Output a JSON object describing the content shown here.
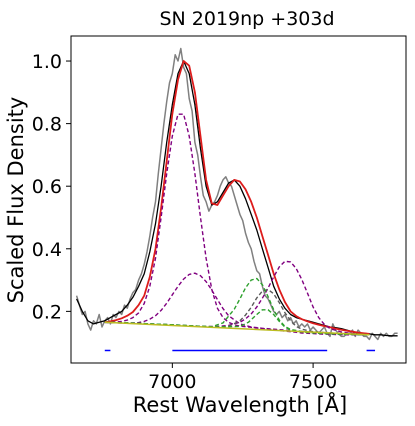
{
  "chart_data": {
    "type": "line",
    "title": "SN 2019np  +303d",
    "xlabel": "Rest Wavelength [Å]",
    "ylabel": "Scaled Flux Density",
    "xlim": [
      6640,
      7830
    ],
    "ylim": [
      0.035,
      1.08
    ],
    "x_ticks": [
      7000,
      7500
    ],
    "x_tick_labels": [
      "7000",
      "7500"
    ],
    "y_ticks": [
      0.2,
      0.4,
      0.6,
      0.8,
      1.0
    ],
    "y_tick_labels": [
      "0.2",
      "0.4",
      "0.6",
      "0.8",
      "1.0"
    ],
    "grid": false,
    "series": [
      {
        "role": "observed-spectrum",
        "color": "#808080",
        "x": [
          6660,
          6670,
          6680,
          6690,
          6700,
          6710,
          6720,
          6730,
          6740,
          6750,
          6760,
          6770,
          6780,
          6790,
          6800,
          6810,
          6820,
          6830,
          6840,
          6850,
          6860,
          6870,
          6880,
          6890,
          6900,
          6910,
          6920,
          6930,
          6940,
          6950,
          6960,
          6970,
          6980,
          6990,
          7000,
          7010,
          7020,
          7030,
          7040,
          7050,
          7060,
          7070,
          7080,
          7090,
          7100,
          7110,
          7120,
          7130,
          7140,
          7150,
          7160,
          7170,
          7180,
          7190,
          7200,
          7210,
          7220,
          7230,
          7240,
          7250,
          7260,
          7270,
          7280,
          7290,
          7300,
          7310,
          7320,
          7330,
          7340,
          7350,
          7360,
          7370,
          7380,
          7390,
          7400,
          7410,
          7420,
          7430,
          7440,
          7450,
          7460,
          7470,
          7480,
          7490,
          7500,
          7510,
          7520,
          7530,
          7540,
          7550,
          7560,
          7570,
          7580,
          7590,
          7600,
          7610,
          7620,
          7630,
          7640,
          7650,
          7660,
          7670,
          7680,
          7690,
          7700,
          7710,
          7720,
          7730,
          7740,
          7750,
          7760,
          7770,
          7780,
          7790,
          7800
        ],
        "y": [
          0.25,
          0.22,
          0.19,
          0.2,
          0.16,
          0.14,
          0.17,
          0.16,
          0.19,
          0.15,
          0.17,
          0.18,
          0.16,
          0.19,
          0.18,
          0.2,
          0.19,
          0.22,
          0.21,
          0.24,
          0.26,
          0.27,
          0.3,
          0.32,
          0.35,
          0.39,
          0.44,
          0.5,
          0.55,
          0.64,
          0.72,
          0.8,
          0.87,
          0.93,
          0.96,
          1.02,
          1.0,
          1.04,
          0.98,
          0.96,
          0.88,
          0.84,
          0.74,
          0.7,
          0.63,
          0.57,
          0.55,
          0.52,
          0.54,
          0.55,
          0.57,
          0.6,
          0.62,
          0.63,
          0.61,
          0.6,
          0.57,
          0.54,
          0.51,
          0.49,
          0.45,
          0.42,
          0.4,
          0.36,
          0.33,
          0.32,
          0.28,
          0.25,
          0.24,
          0.22,
          0.2,
          0.19,
          0.2,
          0.18,
          0.19,
          0.17,
          0.18,
          0.16,
          0.17,
          0.15,
          0.16,
          0.15,
          0.16,
          0.14,
          0.15,
          0.14,
          0.13,
          0.14,
          0.15,
          0.13,
          0.12,
          0.16,
          0.14,
          0.13,
          0.12,
          0.12,
          0.13,
          0.13,
          0.14,
          0.12,
          0.14,
          0.13,
          0.12,
          0.12,
          0.11,
          0.13,
          0.12,
          0.11,
          0.13,
          0.12,
          0.13,
          0.12,
          0.12,
          0.13,
          0.13
        ]
      },
      {
        "role": "smoothed-spectrum",
        "color": "#000000",
        "x": [
          6660,
          6680,
          6700,
          6720,
          6740,
          6760,
          6780,
          6800,
          6820,
          6840,
          6860,
          6880,
          6900,
          6920,
          6940,
          6960,
          6980,
          7000,
          7020,
          7040,
          7060,
          7080,
          7100,
          7120,
          7140,
          7160,
          7180,
          7200,
          7220,
          7240,
          7260,
          7280,
          7300,
          7320,
          7340,
          7360,
          7380,
          7400,
          7420,
          7440,
          7460,
          7480,
          7500,
          7520,
          7540,
          7560,
          7580,
          7600,
          7620,
          7640,
          7660,
          7680,
          7700,
          7720,
          7740,
          7760,
          7780,
          7800
        ],
        "y": [
          0.24,
          0.2,
          0.17,
          0.16,
          0.165,
          0.17,
          0.18,
          0.19,
          0.2,
          0.22,
          0.245,
          0.28,
          0.32,
          0.39,
          0.48,
          0.6,
          0.74,
          0.86,
          0.96,
          1.0,
          0.96,
          0.86,
          0.72,
          0.6,
          0.54,
          0.55,
          0.58,
          0.61,
          0.62,
          0.6,
          0.56,
          0.51,
          0.46,
          0.4,
          0.34,
          0.28,
          0.24,
          0.21,
          0.19,
          0.18,
          0.175,
          0.17,
          0.165,
          0.16,
          0.155,
          0.15,
          0.148,
          0.145,
          0.14,
          0.135,
          0.13,
          0.13,
          0.128,
          0.125,
          0.125,
          0.123,
          0.122,
          0.122
        ]
      },
      {
        "role": "total-fit",
        "color": "#dd1c1c",
        "x": [
          6760,
          6780,
          6800,
          6820,
          6840,
          6860,
          6880,
          6900,
          6920,
          6940,
          6960,
          6980,
          7000,
          7020,
          7040,
          7060,
          7080,
          7100,
          7120,
          7140,
          7160,
          7180,
          7200,
          7220,
          7240,
          7260,
          7280,
          7300,
          7320,
          7340,
          7360,
          7380,
          7400,
          7420,
          7440,
          7460,
          7480,
          7500,
          7520,
          7540,
          7560,
          7580,
          7600,
          7620,
          7640,
          7660,
          7680,
          7700
        ],
        "y": [
          0.165,
          0.168,
          0.172,
          0.178,
          0.186,
          0.198,
          0.22,
          0.25,
          0.31,
          0.4,
          0.53,
          0.68,
          0.83,
          0.94,
          1.0,
          0.985,
          0.9,
          0.76,
          0.62,
          0.545,
          0.54,
          0.57,
          0.6,
          0.62,
          0.615,
          0.59,
          0.55,
          0.5,
          0.44,
          0.38,
          0.32,
          0.27,
          0.23,
          0.2,
          0.185,
          0.175,
          0.168,
          0.162,
          0.157,
          0.153,
          0.149,
          0.145,
          0.141,
          0.138,
          0.135,
          0.132,
          0.13,
          0.128
        ]
      },
      {
        "role": "gaussian-component",
        "color": "#800080",
        "style": "dashed",
        "x": [
          6760,
          6780,
          6800,
          6820,
          6840,
          6860,
          6880,
          6900,
          6920,
          6940,
          6960,
          6980,
          7000,
          7020,
          7040,
          7060,
          7080,
          7100,
          7120,
          7140,
          7160,
          7180,
          7200,
          7220,
          7240,
          7260,
          7280,
          7300,
          7320,
          7340,
          7360,
          7380,
          7400,
          7420,
          7440,
          7460,
          7480,
          7500,
          7520,
          7540,
          7560,
          7580,
          7600,
          7620,
          7640,
          7660,
          7680,
          7700
        ],
        "y": [
          0.165,
          0.165,
          0.166,
          0.168,
          0.172,
          0.18,
          0.195,
          0.225,
          0.28,
          0.37,
          0.5,
          0.64,
          0.76,
          0.83,
          0.83,
          0.76,
          0.64,
          0.5,
          0.37,
          0.27,
          0.21,
          0.18,
          0.165,
          0.157,
          0.153,
          0.151,
          0.149,
          0.147,
          0.145,
          0.143,
          0.141,
          0.139,
          0.137,
          0.135,
          0.133,
          0.131,
          0.13,
          0.129,
          0.128,
          0.127,
          0.127,
          0.126,
          0.126,
          0.125,
          0.125,
          0.125,
          0.125,
          0.125
        ]
      },
      {
        "role": "gaussian-component",
        "color": "#800080",
        "style": "dashed",
        "x": [
          6760,
          6800,
          6840,
          6880,
          6900,
          6920,
          6940,
          6960,
          6980,
          7000,
          7020,
          7040,
          7060,
          7080,
          7100,
          7120,
          7140,
          7160,
          7180,
          7200,
          7240,
          7280,
          7320,
          7360,
          7400,
          7440,
          7480,
          7520,
          7560,
          7600,
          7640,
          7680,
          7700
        ],
        "y": [
          0.165,
          0.163,
          0.162,
          0.164,
          0.168,
          0.175,
          0.186,
          0.203,
          0.226,
          0.253,
          0.28,
          0.303,
          0.318,
          0.322,
          0.314,
          0.295,
          0.268,
          0.238,
          0.209,
          0.186,
          0.16,
          0.15,
          0.146,
          0.143,
          0.14,
          0.137,
          0.134,
          0.131,
          0.129,
          0.127,
          0.126,
          0.125,
          0.125
        ]
      },
      {
        "role": "gaussian-component",
        "color": "#800080",
        "style": "dashed",
        "x": [
          6760,
          6840,
          6920,
          7000,
          7080,
          7120,
          7160,
          7200,
          7240,
          7260,
          7280,
          7300,
          7320,
          7340,
          7360,
          7380,
          7400,
          7420,
          7440,
          7460,
          7480,
          7500,
          7520,
          7540,
          7560,
          7600,
          7640,
          7700
        ],
        "y": [
          0.165,
          0.163,
          0.16,
          0.157,
          0.153,
          0.152,
          0.152,
          0.155,
          0.165,
          0.176,
          0.192,
          0.214,
          0.242,
          0.275,
          0.31,
          0.342,
          0.36,
          0.358,
          0.337,
          0.302,
          0.258,
          0.214,
          0.18,
          0.158,
          0.145,
          0.134,
          0.129,
          0.125
        ]
      },
      {
        "role": "gaussian-component",
        "color": "#5a5a5a",
        "style": "dashed",
        "x": [
          6760,
          6840,
          6920,
          7000,
          7080,
          7160,
          7200,
          7240,
          7260,
          7280,
          7300,
          7320,
          7340,
          7360,
          7380,
          7400,
          7420,
          7440,
          7460,
          7500,
          7560,
          7640,
          7700
        ],
        "y": [
          0.165,
          0.163,
          0.16,
          0.157,
          0.153,
          0.15,
          0.152,
          0.17,
          0.188,
          0.213,
          0.243,
          0.265,
          0.27,
          0.256,
          0.228,
          0.196,
          0.17,
          0.152,
          0.143,
          0.135,
          0.131,
          0.127,
          0.125
        ]
      },
      {
        "role": "gaussian-component",
        "color": "#2ca02c",
        "style": "dashed",
        "x": [
          6760,
          6840,
          6920,
          7000,
          7080,
          7140,
          7180,
          7220,
          7240,
          7260,
          7280,
          7300,
          7320,
          7340,
          7360,
          7380,
          7400,
          7420,
          7460,
          7520,
          7600,
          7700
        ],
        "y": [
          0.165,
          0.163,
          0.16,
          0.157,
          0.153,
          0.151,
          0.163,
          0.207,
          0.24,
          0.275,
          0.3,
          0.305,
          0.285,
          0.247,
          0.205,
          0.172,
          0.152,
          0.142,
          0.136,
          0.131,
          0.127,
          0.125
        ]
      },
      {
        "role": "gaussian-component",
        "color": "#2ca02c",
        "style": "dashed",
        "x": [
          6760,
          6840,
          6920,
          7000,
          7080,
          7160,
          7240,
          7270,
          7300,
          7320,
          7340,
          7360,
          7380,
          7400,
          7420,
          7460,
          7520,
          7600,
          7700
        ],
        "y": [
          0.165,
          0.163,
          0.16,
          0.157,
          0.153,
          0.15,
          0.152,
          0.165,
          0.19,
          0.205,
          0.205,
          0.19,
          0.168,
          0.15,
          0.14,
          0.134,
          0.13,
          0.127,
          0.125
        ]
      },
      {
        "role": "continuum",
        "color": "#bcbd22",
        "x": [
          6760,
          7700
        ],
        "y": [
          0.165,
          0.125
        ]
      }
    ],
    "continuum_windows": {
      "color": "#0000ff",
      "y": 0.075,
      "ranges": [
        [
          6760,
          6780
        ],
        [
          7000,
          7550
        ],
        [
          7690,
          7720
        ]
      ]
    }
  }
}
